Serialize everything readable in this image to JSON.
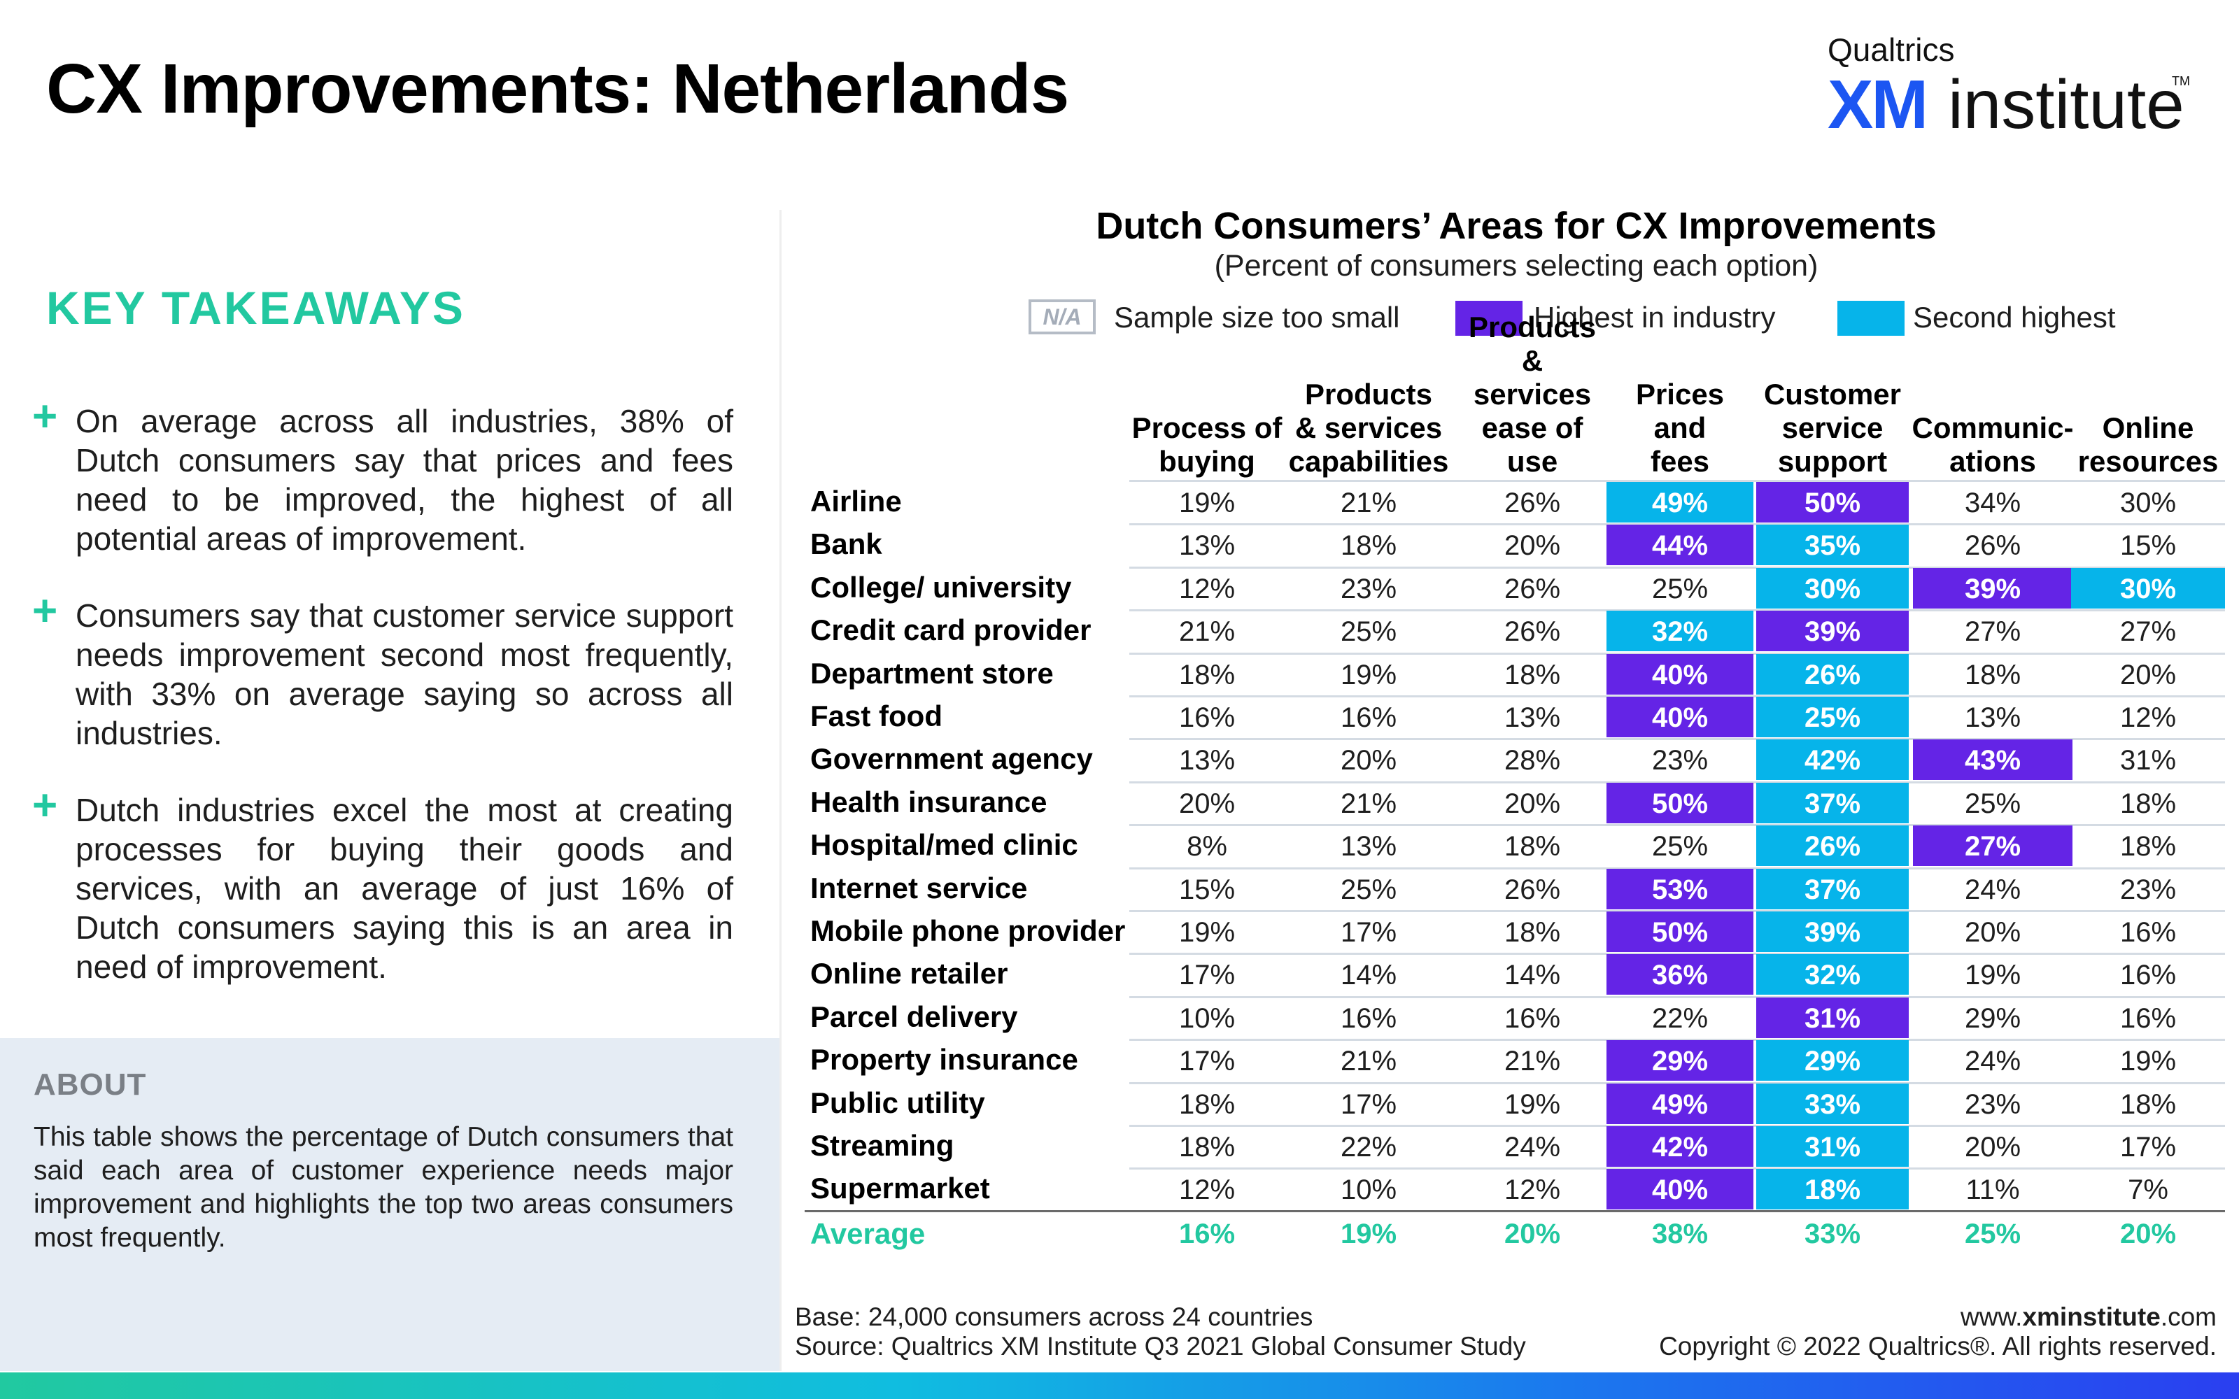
{
  "title": "CX Improvements: Netherlands",
  "brand": {
    "top": "Qualtrics",
    "xm": "XM",
    "institute": "institute",
    "tm": "TM"
  },
  "key_takeaways": {
    "heading": "KEY TAKEAWAYS",
    "bullets": [
      "On average across all industries, 38% of Dutch consumers say that prices and fees need to be improved, the highest of all potential areas of improvement.",
      "Consumers say that customer service support needs improvement second most frequently, with 33% on average saying so across all industries.",
      "Dutch industries excel the most at creating processes for buying their goods and services, with an average of just 16% of Dutch consumers saying this is an area in need of improvement."
    ]
  },
  "about": {
    "heading": "ABOUT",
    "text": "This table shows the percentage of Dutch consumers that said each area of customer experience needs major improvement and highlights the top two areas consumers most frequently."
  },
  "legend": {
    "na_box": "N/A",
    "na_label": "Sample size too small",
    "highest_label": "Highest in industry",
    "second_label": "Second highest"
  },
  "colors": {
    "highest": "#6424e6",
    "second": "#06b4ea",
    "accent": "#22c8a0"
  },
  "chart_data": {
    "type": "table",
    "title": "Dutch Consumers’ Areas for CX Improvements",
    "subtitle": "(Percent of consumers selecting each option)",
    "columns": [
      "Process of buying",
      "Products & services capabilities",
      "Products & services ease of use",
      "Prices and fees",
      "Customer service support",
      "Communic-ations",
      "Online resources"
    ],
    "rows": [
      {
        "label": "Airline",
        "values": [
          "19%",
          "21%",
          "26%",
          "49%",
          "50%",
          "34%",
          "30%"
        ],
        "highest": 4,
        "second": 3
      },
      {
        "label": "Bank",
        "values": [
          "13%",
          "18%",
          "20%",
          "44%",
          "35%",
          "26%",
          "15%"
        ],
        "highest": 3,
        "second": 4
      },
      {
        "label": "College/ university",
        "values": [
          "12%",
          "23%",
          "26%",
          "25%",
          "30%",
          "39%",
          "30%"
        ],
        "highest": 5,
        "second": [
          4,
          6
        ]
      },
      {
        "label": "Credit card provider",
        "values": [
          "21%",
          "25%",
          "26%",
          "32%",
          "39%",
          "27%",
          "27%"
        ],
        "highest": 4,
        "second": 3
      },
      {
        "label": "Department store",
        "values": [
          "18%",
          "19%",
          "18%",
          "40%",
          "26%",
          "18%",
          "20%"
        ],
        "highest": 3,
        "second": 4
      },
      {
        "label": "Fast food",
        "values": [
          "16%",
          "16%",
          "13%",
          "40%",
          "25%",
          "13%",
          "12%"
        ],
        "highest": 3,
        "second": 4
      },
      {
        "label": "Government agency",
        "values": [
          "13%",
          "20%",
          "28%",
          "23%",
          "42%",
          "43%",
          "31%"
        ],
        "highest": 5,
        "second": 4
      },
      {
        "label": "Health insurance",
        "values": [
          "20%",
          "21%",
          "20%",
          "50%",
          "37%",
          "25%",
          "18%"
        ],
        "highest": 3,
        "second": 4
      },
      {
        "label": "Hospital/med clinic",
        "values": [
          "8%",
          "13%",
          "18%",
          "25%",
          "26%",
          "27%",
          "18%"
        ],
        "highest": 5,
        "second": 4
      },
      {
        "label": "Internet service",
        "values": [
          "15%",
          "25%",
          "26%",
          "53%",
          "37%",
          "24%",
          "23%"
        ],
        "highest": 3,
        "second": 4
      },
      {
        "label": "Mobile phone provider",
        "values": [
          "19%",
          "17%",
          "18%",
          "50%",
          "39%",
          "20%",
          "16%"
        ],
        "highest": 3,
        "second": 4
      },
      {
        "label": "Online retailer",
        "values": [
          "17%",
          "14%",
          "14%",
          "36%",
          "32%",
          "19%",
          "16%"
        ],
        "highest": 3,
        "second": 4
      },
      {
        "label": "Parcel delivery",
        "values": [
          "10%",
          "16%",
          "16%",
          "22%",
          "31%",
          "29%",
          "16%"
        ],
        "highest": 4,
        "second": null
      },
      {
        "label": "Property insurance",
        "values": [
          "17%",
          "21%",
          "21%",
          "29%",
          "29%",
          "24%",
          "19%"
        ],
        "highest": 3,
        "second": 4
      },
      {
        "label": "Public utility",
        "values": [
          "18%",
          "17%",
          "19%",
          "49%",
          "33%",
          "23%",
          "18%"
        ],
        "highest": 3,
        "second": 4
      },
      {
        "label": "Streaming",
        "values": [
          "18%",
          "22%",
          "24%",
          "42%",
          "31%",
          "20%",
          "17%"
        ],
        "highest": 3,
        "second": 4
      },
      {
        "label": "Supermarket",
        "values": [
          "12%",
          "10%",
          "12%",
          "40%",
          "18%",
          "11%",
          "7%"
        ],
        "highest": 3,
        "second": 4
      }
    ],
    "average": {
      "label": "Average",
      "values": [
        "16%",
        "19%",
        "20%",
        "38%",
        "33%",
        "25%",
        "20%"
      ]
    }
  },
  "footer": {
    "base": "Base: 24,000 consumers across 24 countries",
    "source": "Source: Qualtrics XM Institute Q3 2021 Global Consumer Study",
    "url_prefix": "www.",
    "url_bold": "xminstitute",
    "url_suffix": ".com",
    "copyright": "Copyright © 2022 Qualtrics®. All rights reserved."
  }
}
